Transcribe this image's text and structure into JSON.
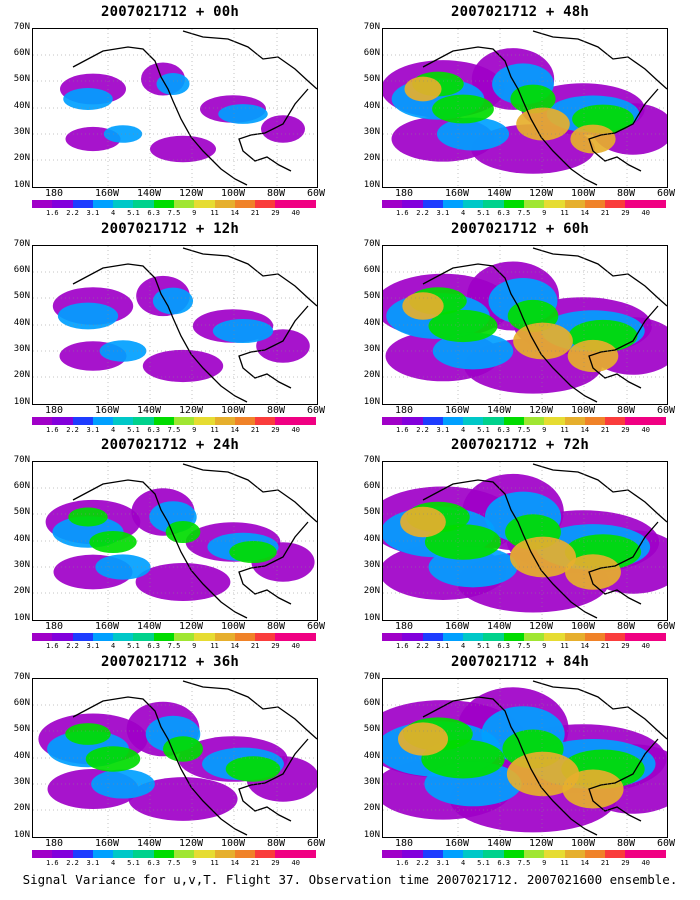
{
  "caption": "Signal Variance for u,v,T. Flight 37. Observation time 2007021712. 2007021600 ensemble.",
  "lat_labels": [
    "70N",
    "60N",
    "50N",
    "40N",
    "30N",
    "20N",
    "10N"
  ],
  "lon_labels": [
    "180",
    "160W",
    "140W",
    "120W",
    "100W",
    "80W",
    "60W"
  ],
  "colorbar": {
    "labels": [
      "1.6",
      "2.2",
      "3.1",
      "4",
      "5.1",
      "6.3",
      "7.5",
      "9",
      "11",
      "14",
      "21",
      "29",
      "40"
    ],
    "colors": [
      "#a000c8",
      "#8200dc",
      "#1e3cff",
      "#00a0ff",
      "#00c8c8",
      "#00d28c",
      "#00dc00",
      "#a0e632",
      "#e6dc32",
      "#e6af2d",
      "#f08228",
      "#fa3c3c",
      "#f00082"
    ]
  },
  "panels": [
    {
      "title": "2007021712 + 00h",
      "intensity": 0
    },
    {
      "title": "2007021712 + 48h",
      "intensity": 4
    },
    {
      "title": "2007021712 + 12h",
      "intensity": 1
    },
    {
      "title": "2007021712 + 60h",
      "intensity": 5
    },
    {
      "title": "2007021712 + 24h",
      "intensity": 2
    },
    {
      "title": "2007021712 + 72h",
      "intensity": 6
    },
    {
      "title": "2007021712 + 36h",
      "intensity": 3
    },
    {
      "title": "2007021712 + 84h",
      "intensity": 7
    }
  ]
}
